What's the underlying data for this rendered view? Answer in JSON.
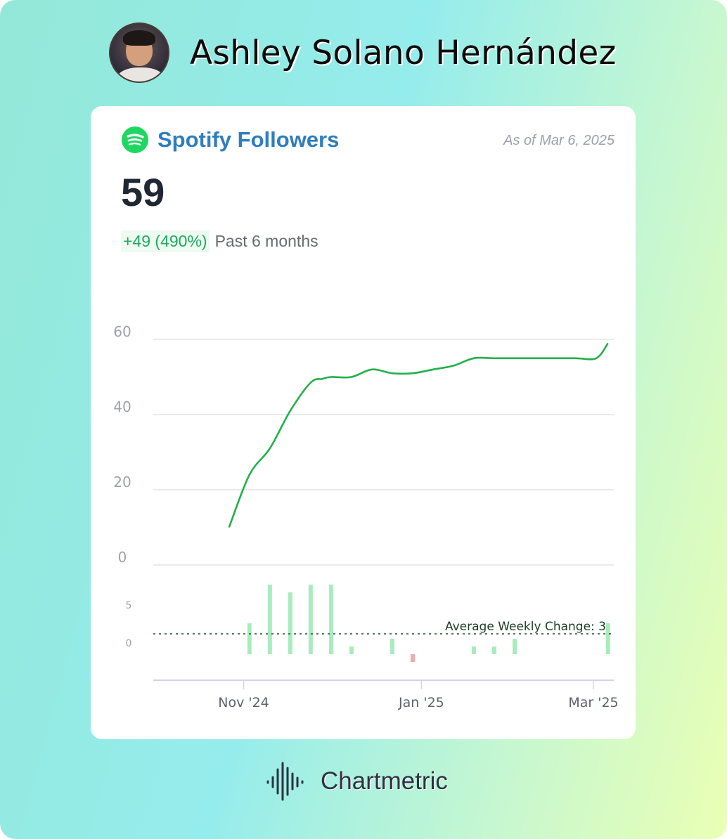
{
  "header": {
    "artist_name": "Ashley Solano Hernández"
  },
  "card": {
    "title": "Spotify Followers",
    "as_of": "As of Mar 6, 2025",
    "value": "59",
    "change": "+49 (490%)",
    "period": "Past 6 months",
    "icon": "spotify-icon"
  },
  "footer": {
    "brand": "Chartmetric",
    "icon": "chartmetric-waveform-icon"
  },
  "colors": {
    "line": "#22b04b",
    "positive_bar": "#a8ecbd",
    "negative_bar": "#f3aaaa",
    "title": "#2f7dbf",
    "avg_line": "#1a4a2a"
  },
  "chart_data": [
    {
      "type": "line",
      "title": "",
      "xlabel": "",
      "ylabel": "",
      "x_tick_labels": [
        "Nov '24",
        "Jan '25",
        "Mar '25"
      ],
      "y_ticks": [
        0,
        20,
        40,
        60
      ],
      "y_tick_labels": [
        "0",
        "20",
        "40",
        "60"
      ],
      "ylim": [
        0,
        60
      ],
      "grid": true,
      "series": [
        {
          "name": "",
          "x": [
            "2024-10-27",
            "2024-11-03",
            "2024-11-10",
            "2024-11-17",
            "2024-11-24",
            "2024-11-28",
            "2024-12-01",
            "2024-12-08",
            "2024-12-15",
            "2024-12-22",
            "2024-12-29",
            "2025-01-05",
            "2025-01-12",
            "2025-01-19",
            "2025-01-26",
            "2025-02-02",
            "2025-02-09",
            "2025-02-16",
            "2025-02-23",
            "2025-03-02",
            "2025-03-06"
          ],
          "values": [
            10,
            24,
            31,
            41,
            48.5,
            49.5,
            50,
            50,
            52,
            51,
            51,
            52,
            53,
            55,
            55,
            55,
            55,
            55,
            55,
            55,
            59
          ]
        }
      ]
    },
    {
      "type": "bar",
      "title": "Average Weekly Change: 3",
      "y_ticks": [
        0,
        5
      ],
      "y_tick_labels": [
        "0",
        "5"
      ],
      "average": 3,
      "x": [
        "2024-11-03",
        "2024-11-10",
        "2024-11-17",
        "2024-11-24",
        "2024-12-01",
        "2024-12-08",
        "2024-12-22",
        "2024-12-29",
        "2025-01-19",
        "2025-01-26",
        "2025-02-02",
        "2025-03-06"
      ],
      "values": [
        4,
        9,
        8,
        9,
        9,
        1,
        2,
        -1,
        1,
        1,
        2,
        4
      ]
    }
  ]
}
